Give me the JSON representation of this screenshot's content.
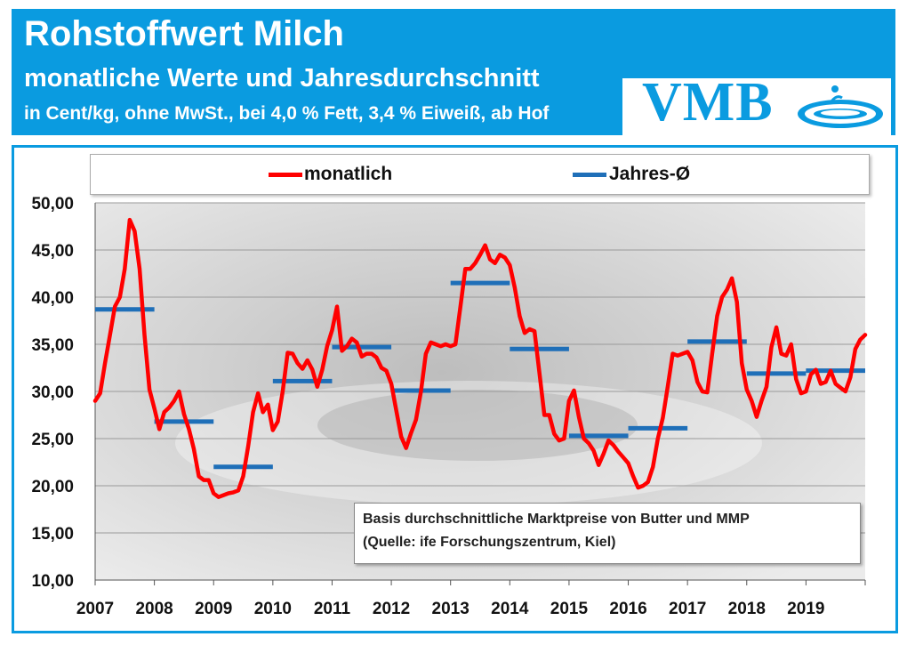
{
  "header": {
    "title": "Rohstoffwert Milch",
    "subtitle": "monatliche Werte und Jahresdurchschnitt",
    "units": "in Cent/kg, ohne MwSt., bei 4,0 % Fett, 3,4 % Eiweiß, ab Hof"
  },
  "logo": {
    "text": "VMB"
  },
  "colors": {
    "accent": "#0a9be0",
    "monthly": "#ff0000",
    "annual": "#1f6fb8"
  },
  "legend": {
    "monthly": "monatlich",
    "annual": "Jahres-Ø"
  },
  "note": {
    "line1": "Basis durchschnittliche Marktpreise von Butter und MMP",
    "line2": "(Quelle: ife Forschungszentrum, Kiel)"
  },
  "chart_data": {
    "type": "line",
    "title": "Rohstoffwert Milch",
    "xlabel": "",
    "ylabel": "",
    "ylim": [
      10,
      50
    ],
    "yticks": [
      "10,00",
      "15,00",
      "20,00",
      "25,00",
      "30,00",
      "35,00",
      "40,00",
      "45,00",
      "50,00"
    ],
    "ytick_values": [
      10,
      15,
      20,
      25,
      30,
      35,
      40,
      45,
      50
    ],
    "xticks": [
      "2007",
      "2008",
      "2009",
      "2010",
      "2011",
      "2012",
      "2013",
      "2014",
      "2015",
      "2016",
      "2017",
      "2018",
      "2019"
    ],
    "grid": true,
    "legend_position": "top",
    "series": [
      {
        "name": "monatlich",
        "kind": "monthly",
        "start": 2007.0,
        "step": 0.0833333,
        "values": [
          29.0,
          29.8,
          33.0,
          36.0,
          39.0,
          40.0,
          43.0,
          48.2,
          47.0,
          43.0,
          36.0,
          30.2,
          28.2,
          26.0,
          27.8,
          28.3,
          29.0,
          30.0,
          27.6,
          26.0,
          23.9,
          21.0,
          20.6,
          20.6,
          19.2,
          18.8,
          19.0,
          19.2,
          19.3,
          19.5,
          21.0,
          24.2,
          27.8,
          29.8,
          27.8,
          28.6,
          25.9,
          26.8,
          30.0,
          34.1,
          34.0,
          33.0,
          32.4,
          33.3,
          32.3,
          30.5,
          32.3,
          34.8,
          36.5,
          39.0,
          34.3,
          34.8,
          35.6,
          35.2,
          33.7,
          34.0,
          34.0,
          33.6,
          32.5,
          32.2,
          30.8,
          28.0,
          25.2,
          24.0,
          25.6,
          27.0,
          30.0,
          34.0,
          35.2,
          35.0,
          34.8,
          35.0,
          34.8,
          35.0,
          39.0,
          43.0,
          43.0,
          43.6,
          44.5,
          45.5,
          44.0,
          43.6,
          44.5,
          44.2,
          43.4,
          41.0,
          38.0,
          36.2,
          36.6,
          36.4,
          32.0,
          27.5,
          27.5,
          25.5,
          24.8,
          25.0,
          29.0,
          30.1,
          27.3,
          25.0,
          24.5,
          23.7,
          22.2,
          23.4,
          24.8,
          24.3,
          23.6,
          23.0,
          22.4,
          21.0,
          19.8,
          20.0,
          20.4,
          22.0,
          25.0,
          27.2,
          30.5,
          34.0,
          33.8,
          34.0,
          34.2,
          33.3,
          31.0,
          30.0,
          29.9,
          34.0,
          38.0,
          40.0,
          40.8,
          42.0,
          39.5,
          33.0,
          30.2,
          29.0,
          27.3,
          29.0,
          30.5,
          34.7,
          36.8,
          34.0,
          33.8,
          35.0,
          31.3,
          29.8,
          30.0,
          31.8,
          32.3,
          30.8,
          31.0,
          32.2,
          30.8,
          30.4,
          30.0,
          31.5,
          34.5,
          35.5,
          36.0
        ]
      },
      {
        "name": "Jahres-Ø",
        "kind": "annual",
        "segments": [
          {
            "year": 2007,
            "value": 38.7
          },
          {
            "year": 2008,
            "value": 26.8
          },
          {
            "year": 2009,
            "value": 22.0
          },
          {
            "year": 2010,
            "value": 31.1
          },
          {
            "year": 2011,
            "value": 34.7
          },
          {
            "year": 2012,
            "value": 30.1
          },
          {
            "year": 2013,
            "value": 41.5
          },
          {
            "year": 2014,
            "value": 34.5
          },
          {
            "year": 2015,
            "value": 25.3
          },
          {
            "year": 2016,
            "value": 26.1
          },
          {
            "year": 2017,
            "value": 35.3
          },
          {
            "year": 2018,
            "value": 31.9
          },
          {
            "year": 2019,
            "value": 32.2
          }
        ]
      }
    ]
  }
}
